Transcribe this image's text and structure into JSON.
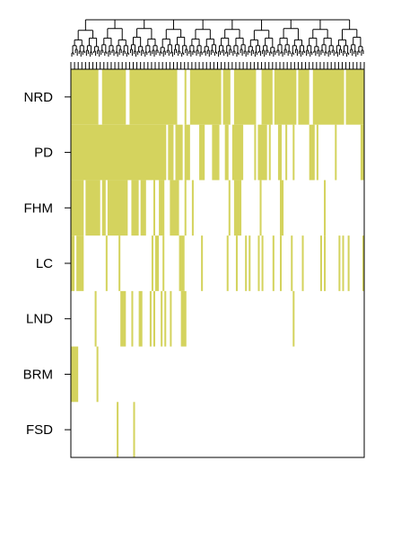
{
  "chart_data": {
    "type": "heatmap",
    "title": "",
    "xlabel": "",
    "ylabel": "",
    "rows": [
      "NRD",
      "PD",
      "FHM",
      "LC",
      "LND",
      "BRM",
      "FSD"
    ],
    "n_columns": 160,
    "fill_color": "#d4d35e",
    "empty_color": "#ffffff",
    "grid": false,
    "legend": "none",
    "row_presence": {
      "NRD": "0-159 except 15,16,30,31,58,59,60,61,63,64,82,87,88,101,102,103,110,123,130,131,149",
      "PD": "0-51,53,54,55,57,58,59,60,62,63,64,70,71,72,77,78,79,80,84,85,88,89,90,91,92,93,100,102,103,104,105,106,108,113,114,117,121,130,131,132,134,144,158,159",
      "FHM": "0,1,2,3,4,5,6,8,9,10,11,12,13,14,15,17,18,20,21,22,23,24,25,26,27,28,29,30,33,34,35,36,38,39,40,45,48,49,50,54,55,56,57,58,62,66,86,89,90,91,92,103,114,115,138",
      "LC": "0,1,3,4,5,6,19,26,44,46,47,50,59,60,61,71,85,90,95,97,102,104,110,114,120,126,136,138,146,148,151,159",
      "LND": "13,27,28,29,33,37,38,43,45,49,51,54,60,61,62,121",
      "BRM": "0,1,2,3,14",
      "FSD": "25,34"
    }
  }
}
